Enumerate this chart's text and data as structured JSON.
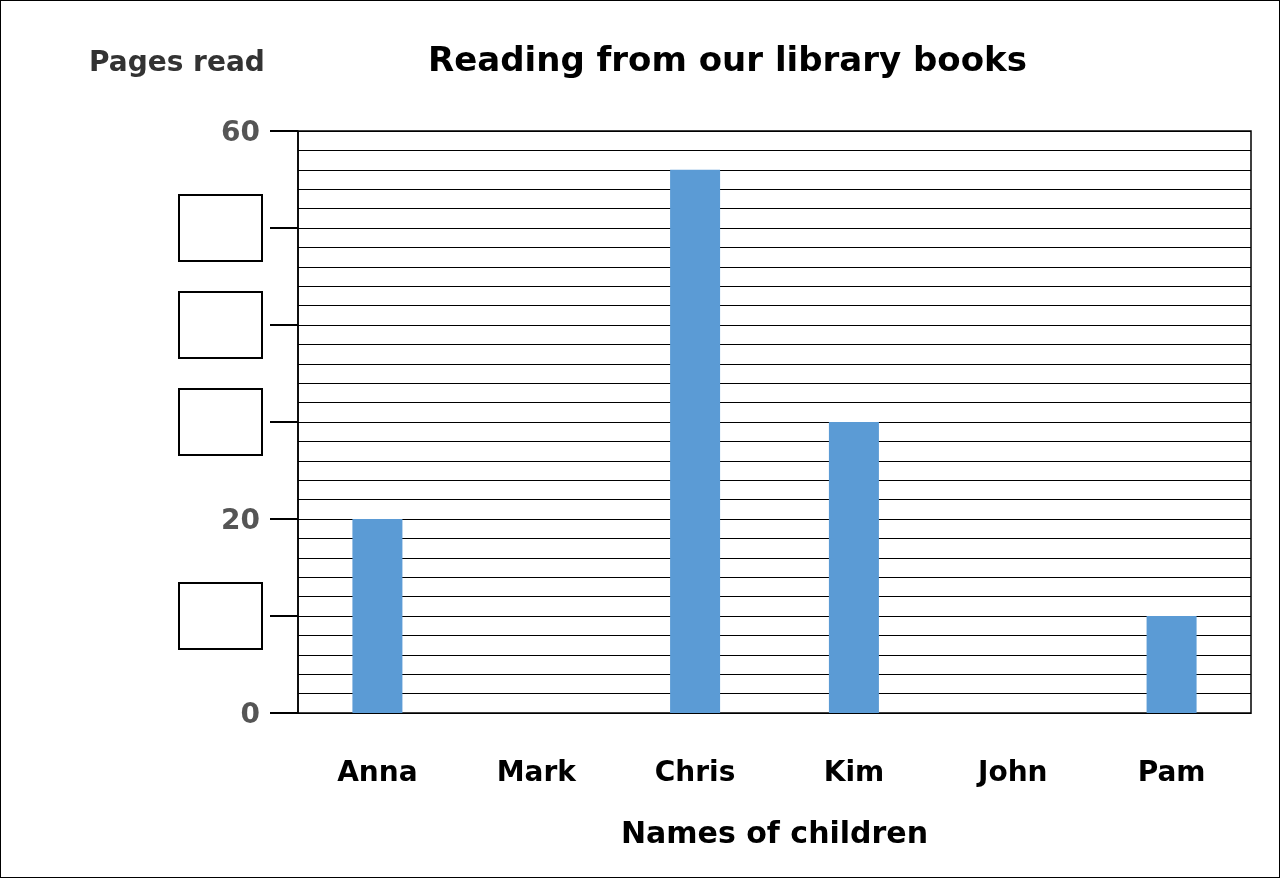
{
  "chart_data": {
    "type": "bar",
    "title": "Reading from our library books",
    "ylabel": "Pages read",
    "xlabel": "Names of children",
    "categories": [
      "Anna",
      "Mark",
      "Chris",
      "Kim",
      "John",
      "Pam"
    ],
    "values": [
      20,
      null,
      56,
      30,
      null,
      10
    ],
    "color": "#5b9bd5",
    "ylim": [
      0,
      60
    ],
    "yticks": [
      0,
      {
        "value": 10,
        "label": null
      },
      20,
      {
        "value": 30,
        "label": null
      },
      {
        "value": 40,
        "label": null
      },
      {
        "value": 50,
        "label": null
      },
      60
    ],
    "grid": "y"
  }
}
